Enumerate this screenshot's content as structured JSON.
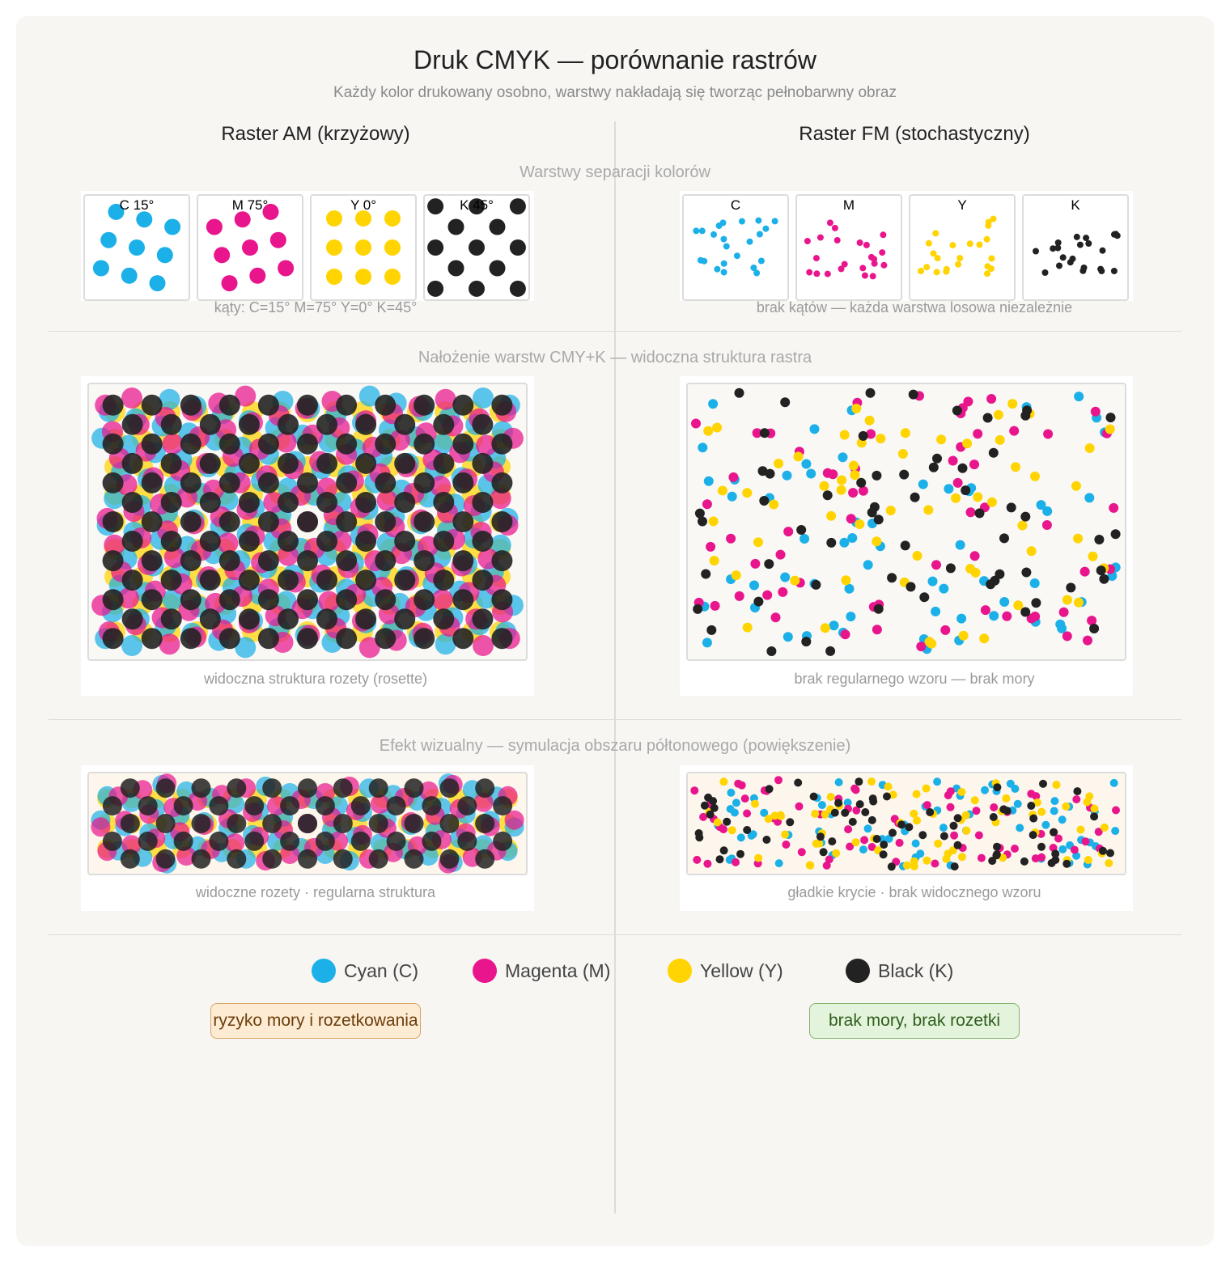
{
  "title": "Druk CMYK — porównanie rastrów",
  "subtitle": "Każdy kolor drukowany osobno, warstwy nakładają się tworząc pełnobarwny obraz",
  "columns": {
    "am": {
      "title": "Raster AM (krzyżowy)"
    },
    "fm": {
      "title": "Raster FM (stochastyczny)"
    }
  },
  "sections": {
    "separation": "Warstwy separacji kolorów",
    "overlay": "Nałożenie warstw CMY+K — widoczna struktura rastra",
    "visual": "Efekt wizualny — symulacja obszaru półtonowego (powiększenie)"
  },
  "am": {
    "layers": [
      {
        "label": "C 15°",
        "ink": "cyan",
        "angle": 15
      },
      {
        "label": "M 75°",
        "ink": "magenta",
        "angle": 75
      },
      {
        "label": "Y 0°",
        "ink": "yellow",
        "angle": 0
      },
      {
        "label": "K 45°",
        "ink": "black",
        "angle": 45
      }
    ],
    "angles_caption": "kąty: C=15° M=75° Y=0° K=45°",
    "overlay_caption": "widoczna struktura rozety (rosette)",
    "visual_caption": "widoczne rozety · regularna struktura",
    "badge": "ryzyko mory i rozetkowania"
  },
  "fm": {
    "layers": [
      {
        "label": "C",
        "ink": "cyan"
      },
      {
        "label": "M",
        "ink": "magenta"
      },
      {
        "label": "Y",
        "ink": "yellow"
      },
      {
        "label": "K",
        "ink": "black"
      }
    ],
    "angles_caption": "brak kątów — każda warstwa losowa niezależnie",
    "overlay_caption": "brak regularnego wzoru — brak mory",
    "visual_caption": "gładkie krycie · brak widocznego wzoru",
    "badge": "brak mory, brak rozetki"
  },
  "legend": [
    {
      "label": "Cyan (C)",
      "ink": "cyan"
    },
    {
      "label": "Magenta (M)",
      "ink": "magenta"
    },
    {
      "label": "Yellow (Y)",
      "ink": "yellow"
    },
    {
      "label": "Black (K)",
      "ink": "black"
    }
  ],
  "colors": {
    "cyan": "#1cb0e8",
    "magenta": "#e8158c",
    "yellow": "#ffd400",
    "black": "#222222",
    "am_badge_bg": "#fdebd3",
    "am_badge_border": "#d9a361",
    "am_badge_text": "#6b3f0c",
    "fm_badge_bg": "#e4f4dc",
    "fm_badge_border": "#7fb46a",
    "fm_badge_text": "#2f5e1d"
  }
}
